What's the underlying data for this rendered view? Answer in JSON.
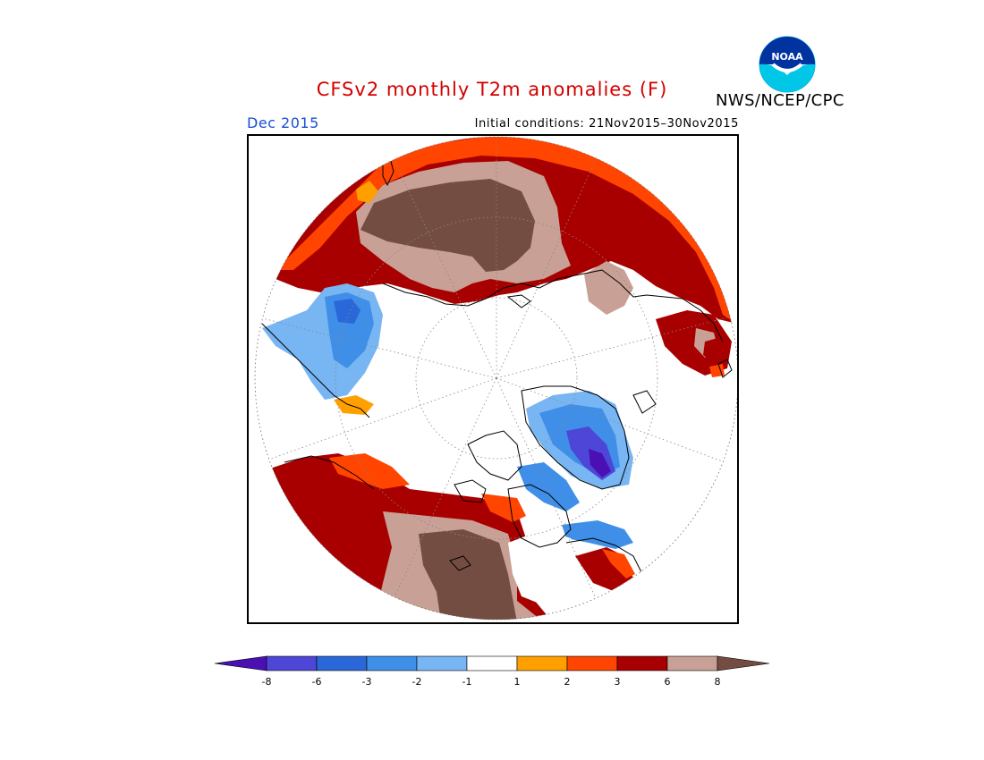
{
  "header": {
    "title": "CFSv2 monthly T2m anomalies (F)",
    "valid_period": "Dec 2015",
    "initial_conditions": "Initial conditions: 21Nov2015–30Nov2015",
    "organization": "NWS/NCEP/CPC",
    "logo_text": "NOAA",
    "logo_icon": "noaa-logo-icon"
  },
  "map": {
    "projection": "polar-stereographic",
    "region": "Northern Hemisphere",
    "graticule": "dotted"
  },
  "legend": {
    "tick_labels": [
      "-8",
      "-6",
      "-3",
      "-2",
      "-1",
      "1",
      "2",
      "3",
      "6",
      "8"
    ],
    "colors": [
      "#4a10b4",
      "#4d46d6",
      "#2a67d8",
      "#3f8fe8",
      "#78b5f3",
      "#ffffff",
      "#ffa000",
      "#ff4500",
      "#a80000",
      "#c9a095",
      "#744d42"
    ]
  }
}
